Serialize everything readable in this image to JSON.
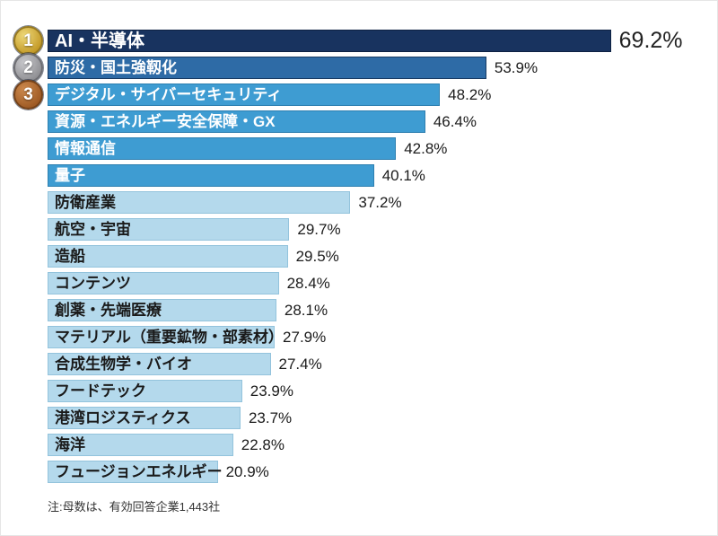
{
  "chart_data": {
    "type": "bar",
    "orientation": "horizontal",
    "unit": "%",
    "xlim": [
      0,
      75
    ],
    "grid": false,
    "note": "注:母数は、有効回答企業1,443社",
    "rows": [
      {
        "rank": "1",
        "medal": "gold",
        "tier": "rank1",
        "label": "AI・半導体",
        "value": 69.2,
        "display": "69.2%",
        "emphasized": true
      },
      {
        "rank": "2",
        "medal": "silver",
        "tier": "rank2",
        "label": "防災・国土強靱化",
        "value": 53.9,
        "display": "53.9%",
        "emphasized": false
      },
      {
        "rank": "3",
        "medal": "bronze",
        "tier": "mid",
        "label": "デジタル・サイバーセキュリティ",
        "value": 48.2,
        "display": "48.2%",
        "emphasized": false
      },
      {
        "tier": "mid",
        "label": "資源・エネルギー安全保障・GX",
        "value": 46.4,
        "display": "46.4%",
        "emphasized": false
      },
      {
        "tier": "mid",
        "label": "情報通信",
        "value": 42.8,
        "display": "42.8%",
        "emphasized": false
      },
      {
        "tier": "mid",
        "label": "量子",
        "value": 40.1,
        "display": "40.1%",
        "emphasized": false
      },
      {
        "tier": "light",
        "label": "防衛産業",
        "value": 37.2,
        "display": "37.2%",
        "emphasized": false
      },
      {
        "tier": "light",
        "label": "航空・宇宙",
        "value": 29.7,
        "display": "29.7%",
        "emphasized": false
      },
      {
        "tier": "light",
        "label": "造船",
        "value": 29.5,
        "display": "29.5%",
        "emphasized": false
      },
      {
        "tier": "light",
        "label": "コンテンツ",
        "value": 28.4,
        "display": "28.4%",
        "emphasized": false
      },
      {
        "tier": "light",
        "label": "創薬・先端医療",
        "value": 28.1,
        "display": "28.1%",
        "emphasized": false
      },
      {
        "tier": "light",
        "label": "マテリアル（重要鉱物・部素材）",
        "value": 27.9,
        "display": "27.9%",
        "emphasized": false
      },
      {
        "tier": "light",
        "label": "合成生物学・バイオ",
        "value": 27.4,
        "display": "27.4%",
        "emphasized": false
      },
      {
        "tier": "light",
        "label": "フードテック",
        "value": 23.9,
        "display": "23.9%",
        "emphasized": false
      },
      {
        "tier": "light",
        "label": "港湾ロジスティクス",
        "value": 23.7,
        "display": "23.7%",
        "emphasized": false
      },
      {
        "tier": "light",
        "label": "海洋",
        "value": 22.8,
        "display": "22.8%",
        "emphasized": false
      },
      {
        "tier": "light",
        "label": "フュージョンエネルギー",
        "value": 20.9,
        "display": "20.9%",
        "emphasized": false
      }
    ]
  },
  "palette": {
    "rank1": {
      "bg": "#18335f",
      "border": "#0e2243",
      "text": "#ffffff"
    },
    "rank2": {
      "bg": "#2e6ba6",
      "border": "#173a63",
      "text": "#ffffff"
    },
    "mid": {
      "bg": "#3e9cd2",
      "border": "#2d7fb0",
      "text": "#ffffff"
    },
    "light": {
      "bg": "#b4d9ec",
      "border": "#93c3dc",
      "text": "#1a1a1a"
    }
  },
  "medals": {
    "gold": {
      "fill_light": "#eed878",
      "fill_dark": "#c39a28",
      "ring": "#96781f"
    },
    "silver": {
      "fill_light": "#c8c8cc",
      "fill_dark": "#909094",
      "ring": "#6d6d72"
    },
    "bronze": {
      "fill_light": "#cd8a4e",
      "fill_dark": "#9e5a24",
      "ring": "#754219"
    }
  }
}
